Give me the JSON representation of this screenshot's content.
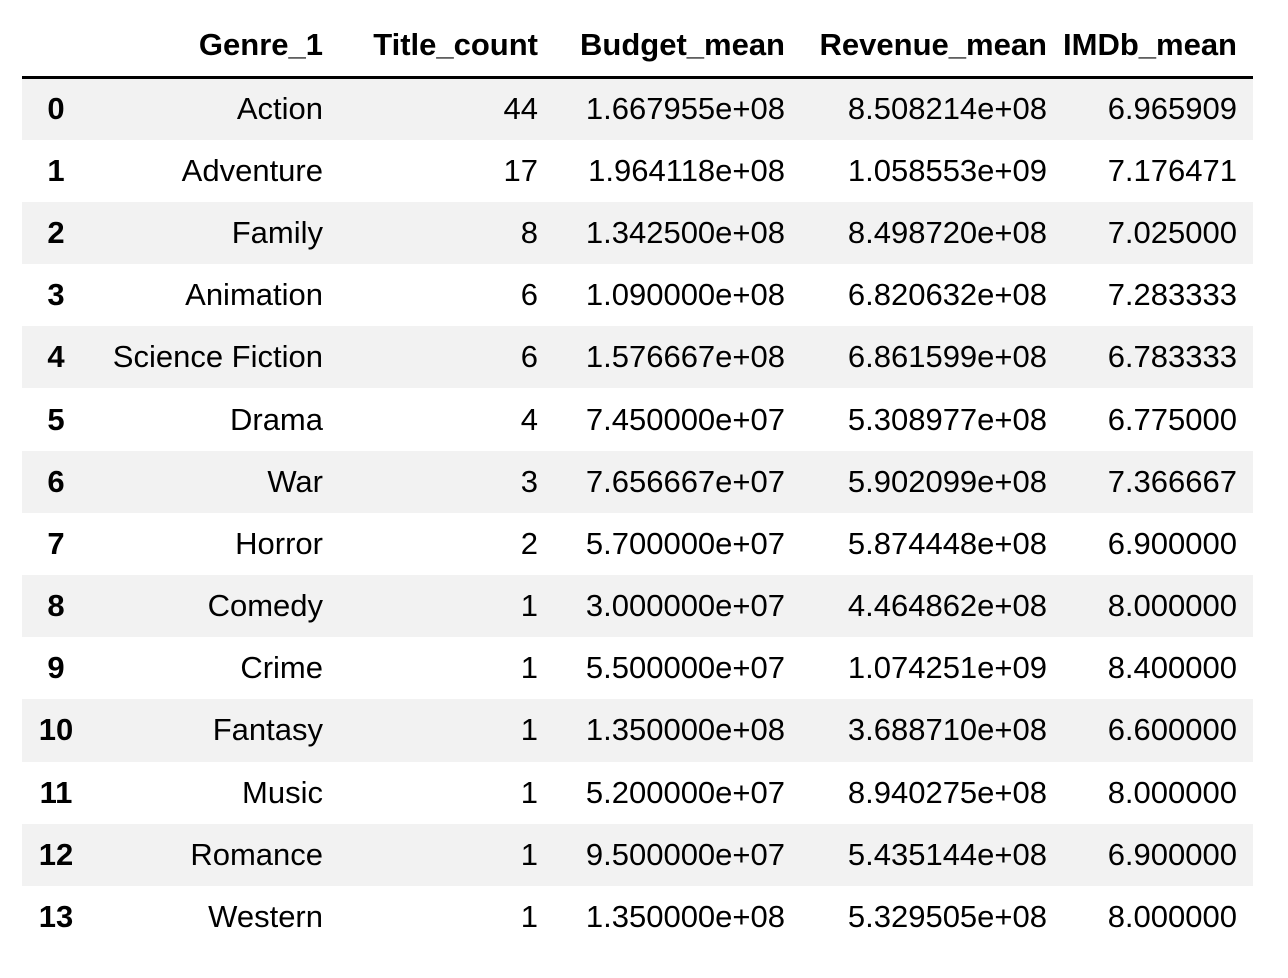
{
  "table": {
    "columns": [
      "",
      "Genre_1",
      "Title_count",
      "Budget_mean",
      "Revenue_mean",
      "IMDb_mean"
    ],
    "rows": [
      {
        "index": "0",
        "genre": "Action",
        "title_count": "44",
        "budget_mean": "1.667955e+08",
        "revenue_mean": "8.508214e+08",
        "imdb_mean": "6.965909"
      },
      {
        "index": "1",
        "genre": "Adventure",
        "title_count": "17",
        "budget_mean": "1.964118e+08",
        "revenue_mean": "1.058553e+09",
        "imdb_mean": "7.176471"
      },
      {
        "index": "2",
        "genre": "Family",
        "title_count": "8",
        "budget_mean": "1.342500e+08",
        "revenue_mean": "8.498720e+08",
        "imdb_mean": "7.025000"
      },
      {
        "index": "3",
        "genre": "Animation",
        "title_count": "6",
        "budget_mean": "1.090000e+08",
        "revenue_mean": "6.820632e+08",
        "imdb_mean": "7.283333"
      },
      {
        "index": "4",
        "genre": "Science Fiction",
        "title_count": "6",
        "budget_mean": "1.576667e+08",
        "revenue_mean": "6.861599e+08",
        "imdb_mean": "6.783333"
      },
      {
        "index": "5",
        "genre": "Drama",
        "title_count": "4",
        "budget_mean": "7.450000e+07",
        "revenue_mean": "5.308977e+08",
        "imdb_mean": "6.775000"
      },
      {
        "index": "6",
        "genre": "War",
        "title_count": "3",
        "budget_mean": "7.656667e+07",
        "revenue_mean": "5.902099e+08",
        "imdb_mean": "7.366667"
      },
      {
        "index": "7",
        "genre": "Horror",
        "title_count": "2",
        "budget_mean": "5.700000e+07",
        "revenue_mean": "5.874448e+08",
        "imdb_mean": "6.900000"
      },
      {
        "index": "8",
        "genre": "Comedy",
        "title_count": "1",
        "budget_mean": "3.000000e+07",
        "revenue_mean": "4.464862e+08",
        "imdb_mean": "8.000000"
      },
      {
        "index": "9",
        "genre": "Crime",
        "title_count": "1",
        "budget_mean": "5.500000e+07",
        "revenue_mean": "1.074251e+09",
        "imdb_mean": "8.400000"
      },
      {
        "index": "10",
        "genre": "Fantasy",
        "title_count": "1",
        "budget_mean": "1.350000e+08",
        "revenue_mean": "3.688710e+08",
        "imdb_mean": "6.600000"
      },
      {
        "index": "11",
        "genre": "Music",
        "title_count": "1",
        "budget_mean": "5.200000e+07",
        "revenue_mean": "8.940275e+08",
        "imdb_mean": "8.000000"
      },
      {
        "index": "12",
        "genre": "Romance",
        "title_count": "1",
        "budget_mean": "9.500000e+07",
        "revenue_mean": "5.435144e+08",
        "imdb_mean": "6.900000"
      },
      {
        "index": "13",
        "genre": "Western",
        "title_count": "1",
        "budget_mean": "1.350000e+08",
        "revenue_mean": "5.329505e+08",
        "imdb_mean": "8.000000"
      }
    ]
  },
  "colors": {
    "stripe": "#f2f2f2",
    "background": "#ffffff",
    "text": "#000000",
    "header_rule": "#000000"
  }
}
